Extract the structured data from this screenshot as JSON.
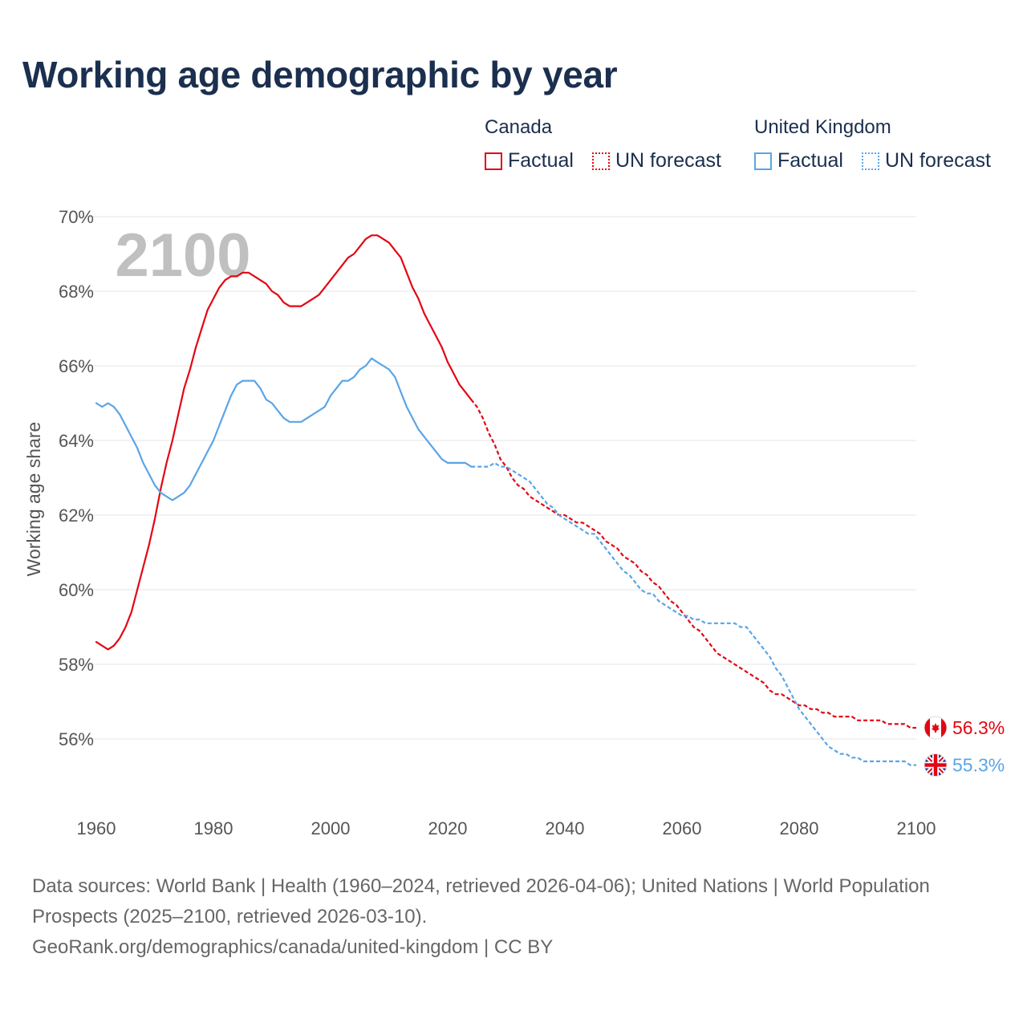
{
  "title": "Working age demographic by year",
  "legend": {
    "groups": [
      {
        "country": "Canada",
        "color": "#e30613",
        "items": [
          {
            "label": "Factual",
            "style": "solid"
          },
          {
            "label": "UN forecast",
            "style": "dotted"
          }
        ]
      },
      {
        "country": "United Kingdom",
        "color": "#5aa5e6",
        "items": [
          {
            "label": "Factual",
            "style": "solid"
          },
          {
            "label": "UN forecast",
            "style": "dotted"
          }
        ]
      }
    ]
  },
  "year_display": "2100",
  "footer": {
    "line1": "Data sources: World Bank | Health (1960–2024, retrieved 2026-04-06); United Nations | World Population Prospects (2025–2100, retrieved 2026-03-10).",
    "line2": "GeoRank.org/demographics/canada/united-kingdom | CC BY"
  },
  "chart_data": {
    "type": "line",
    "title": "Working age demographic by year",
    "xlabel": "",
    "ylabel": "Working age share",
    "xlim": [
      1960,
      2100
    ],
    "ylim": [
      54,
      70
    ],
    "x_ticks": [
      1960,
      1980,
      2000,
      2020,
      2040,
      2060,
      2080,
      2100
    ],
    "y_ticks": [
      56,
      58,
      60,
      62,
      64,
      66,
      68,
      70
    ],
    "y_tick_labels": [
      "56%",
      "58%",
      "60%",
      "62%",
      "64%",
      "66%",
      "68%",
      "70%"
    ],
    "grid": true,
    "factual_end_year": 2024,
    "series": [
      {
        "name": "Canada",
        "color": "#e30613",
        "flag": "canada-flag",
        "end_label": "56.3%",
        "points": [
          [
            1960,
            58.6
          ],
          [
            1961,
            58.5
          ],
          [
            1962,
            58.4
          ],
          [
            1963,
            58.5
          ],
          [
            1964,
            58.7
          ],
          [
            1965,
            59.0
          ],
          [
            1966,
            59.4
          ],
          [
            1967,
            60.0
          ],
          [
            1968,
            60.6
          ],
          [
            1969,
            61.2
          ],
          [
            1970,
            61.9
          ],
          [
            1971,
            62.7
          ],
          [
            1972,
            63.4
          ],
          [
            1973,
            64.0
          ],
          [
            1974,
            64.7
          ],
          [
            1975,
            65.4
          ],
          [
            1976,
            65.9
          ],
          [
            1977,
            66.5
          ],
          [
            1978,
            67.0
          ],
          [
            1979,
            67.5
          ],
          [
            1980,
            67.8
          ],
          [
            1981,
            68.1
          ],
          [
            1982,
            68.3
          ],
          [
            1983,
            68.4
          ],
          [
            1984,
            68.4
          ],
          [
            1985,
            68.5
          ],
          [
            1986,
            68.5
          ],
          [
            1987,
            68.4
          ],
          [
            1988,
            68.3
          ],
          [
            1989,
            68.2
          ],
          [
            1990,
            68.0
          ],
          [
            1991,
            67.9
          ],
          [
            1992,
            67.7
          ],
          [
            1993,
            67.6
          ],
          [
            1994,
            67.6
          ],
          [
            1995,
            67.6
          ],
          [
            1996,
            67.7
          ],
          [
            1997,
            67.8
          ],
          [
            1998,
            67.9
          ],
          [
            1999,
            68.1
          ],
          [
            2000,
            68.3
          ],
          [
            2001,
            68.5
          ],
          [
            2002,
            68.7
          ],
          [
            2003,
            68.9
          ],
          [
            2004,
            69.0
          ],
          [
            2005,
            69.2
          ],
          [
            2006,
            69.4
          ],
          [
            2007,
            69.5
          ],
          [
            2008,
            69.5
          ],
          [
            2009,
            69.4
          ],
          [
            2010,
            69.3
          ],
          [
            2011,
            69.1
          ],
          [
            2012,
            68.9
          ],
          [
            2013,
            68.5
          ],
          [
            2014,
            68.1
          ],
          [
            2015,
            67.8
          ],
          [
            2016,
            67.4
          ],
          [
            2017,
            67.1
          ],
          [
            2018,
            66.8
          ],
          [
            2019,
            66.5
          ],
          [
            2020,
            66.1
          ],
          [
            2021,
            65.8
          ],
          [
            2022,
            65.5
          ],
          [
            2023,
            65.3
          ],
          [
            2024,
            65.1
          ],
          [
            2025,
            64.9
          ],
          [
            2026,
            64.6
          ],
          [
            2027,
            64.2
          ],
          [
            2028,
            63.9
          ],
          [
            2029,
            63.5
          ],
          [
            2030,
            63.3
          ],
          [
            2031,
            63.0
          ],
          [
            2032,
            62.8
          ],
          [
            2033,
            62.7
          ],
          [
            2034,
            62.5
          ],
          [
            2035,
            62.4
          ],
          [
            2036,
            62.3
          ],
          [
            2037,
            62.2
          ],
          [
            2038,
            62.1
          ],
          [
            2039,
            62.0
          ],
          [
            2040,
            62.0
          ],
          [
            2041,
            61.9
          ],
          [
            2042,
            61.8
          ],
          [
            2043,
            61.8
          ],
          [
            2044,
            61.7
          ],
          [
            2045,
            61.6
          ],
          [
            2046,
            61.5
          ],
          [
            2047,
            61.3
          ],
          [
            2048,
            61.2
          ],
          [
            2049,
            61.1
          ],
          [
            2050,
            60.9
          ],
          [
            2051,
            60.8
          ],
          [
            2052,
            60.7
          ],
          [
            2053,
            60.5
          ],
          [
            2054,
            60.4
          ],
          [
            2055,
            60.2
          ],
          [
            2056,
            60.1
          ],
          [
            2057,
            59.9
          ],
          [
            2058,
            59.7
          ],
          [
            2059,
            59.6
          ],
          [
            2060,
            59.4
          ],
          [
            2061,
            59.2
          ],
          [
            2062,
            59.0
          ],
          [
            2063,
            58.9
          ],
          [
            2064,
            58.7
          ],
          [
            2065,
            58.5
          ],
          [
            2066,
            58.3
          ],
          [
            2067,
            58.2
          ],
          [
            2068,
            58.1
          ],
          [
            2069,
            58.0
          ],
          [
            2070,
            57.9
          ],
          [
            2071,
            57.8
          ],
          [
            2072,
            57.7
          ],
          [
            2073,
            57.6
          ],
          [
            2074,
            57.5
          ],
          [
            2075,
            57.3
          ],
          [
            2076,
            57.2
          ],
          [
            2077,
            57.2
          ],
          [
            2078,
            57.1
          ],
          [
            2079,
            57.0
          ],
          [
            2080,
            56.9
          ],
          [
            2081,
            56.9
          ],
          [
            2082,
            56.8
          ],
          [
            2083,
            56.8
          ],
          [
            2084,
            56.7
          ],
          [
            2085,
            56.7
          ],
          [
            2086,
            56.6
          ],
          [
            2087,
            56.6
          ],
          [
            2088,
            56.6
          ],
          [
            2089,
            56.6
          ],
          [
            2090,
            56.5
          ],
          [
            2091,
            56.5
          ],
          [
            2092,
            56.5
          ],
          [
            2093,
            56.5
          ],
          [
            2094,
            56.5
          ],
          [
            2095,
            56.4
          ],
          [
            2096,
            56.4
          ],
          [
            2097,
            56.4
          ],
          [
            2098,
            56.4
          ],
          [
            2099,
            56.3
          ],
          [
            2100,
            56.3
          ]
        ]
      },
      {
        "name": "United Kingdom",
        "color": "#5aa5e6",
        "flag": "uk-flag",
        "end_label": "55.3%",
        "points": [
          [
            1960,
            65.0
          ],
          [
            1961,
            64.9
          ],
          [
            1962,
            65.0
          ],
          [
            1963,
            64.9
          ],
          [
            1964,
            64.7
          ],
          [
            1965,
            64.4
          ],
          [
            1966,
            64.1
          ],
          [
            1967,
            63.8
          ],
          [
            1968,
            63.4
          ],
          [
            1969,
            63.1
          ],
          [
            1970,
            62.8
          ],
          [
            1971,
            62.6
          ],
          [
            1972,
            62.5
          ],
          [
            1973,
            62.4
          ],
          [
            1974,
            62.5
          ],
          [
            1975,
            62.6
          ],
          [
            1976,
            62.8
          ],
          [
            1977,
            63.1
          ],
          [
            1978,
            63.4
          ],
          [
            1979,
            63.7
          ],
          [
            1980,
            64.0
          ],
          [
            1981,
            64.4
          ],
          [
            1982,
            64.8
          ],
          [
            1983,
            65.2
          ],
          [
            1984,
            65.5
          ],
          [
            1985,
            65.6
          ],
          [
            1986,
            65.6
          ],
          [
            1987,
            65.6
          ],
          [
            1988,
            65.4
          ],
          [
            1989,
            65.1
          ],
          [
            1990,
            65.0
          ],
          [
            1991,
            64.8
          ],
          [
            1992,
            64.6
          ],
          [
            1993,
            64.5
          ],
          [
            1994,
            64.5
          ],
          [
            1995,
            64.5
          ],
          [
            1996,
            64.6
          ],
          [
            1997,
            64.7
          ],
          [
            1998,
            64.8
          ],
          [
            1999,
            64.9
          ],
          [
            2000,
            65.2
          ],
          [
            2001,
            65.4
          ],
          [
            2002,
            65.6
          ],
          [
            2003,
            65.6
          ],
          [
            2004,
            65.7
          ],
          [
            2005,
            65.9
          ],
          [
            2006,
            66.0
          ],
          [
            2007,
            66.2
          ],
          [
            2008,
            66.1
          ],
          [
            2009,
            66.0
          ],
          [
            2010,
            65.9
          ],
          [
            2011,
            65.7
          ],
          [
            2012,
            65.3
          ],
          [
            2013,
            64.9
          ],
          [
            2014,
            64.6
          ],
          [
            2015,
            64.3
          ],
          [
            2016,
            64.1
          ],
          [
            2017,
            63.9
          ],
          [
            2018,
            63.7
          ],
          [
            2019,
            63.5
          ],
          [
            2020,
            63.4
          ],
          [
            2021,
            63.4
          ],
          [
            2022,
            63.4
          ],
          [
            2023,
            63.4
          ],
          [
            2024,
            63.3
          ],
          [
            2025,
            63.3
          ],
          [
            2026,
            63.3
          ],
          [
            2027,
            63.3
          ],
          [
            2028,
            63.4
          ],
          [
            2029,
            63.3
          ],
          [
            2030,
            63.3
          ],
          [
            2031,
            63.2
          ],
          [
            2032,
            63.1
          ],
          [
            2033,
            63.0
          ],
          [
            2034,
            62.9
          ],
          [
            2035,
            62.7
          ],
          [
            2036,
            62.5
          ],
          [
            2037,
            62.3
          ],
          [
            2038,
            62.2
          ],
          [
            2039,
            62.0
          ],
          [
            2040,
            61.9
          ],
          [
            2041,
            61.8
          ],
          [
            2042,
            61.7
          ],
          [
            2043,
            61.6
          ],
          [
            2044,
            61.5
          ],
          [
            2045,
            61.5
          ],
          [
            2046,
            61.3
          ],
          [
            2047,
            61.1
          ],
          [
            2048,
            60.9
          ],
          [
            2049,
            60.7
          ],
          [
            2050,
            60.5
          ],
          [
            2051,
            60.4
          ],
          [
            2052,
            60.2
          ],
          [
            2053,
            60.0
          ],
          [
            2054,
            59.9
          ],
          [
            2055,
            59.9
          ],
          [
            2056,
            59.7
          ],
          [
            2057,
            59.6
          ],
          [
            2058,
            59.5
          ],
          [
            2059,
            59.4
          ],
          [
            2060,
            59.3
          ],
          [
            2061,
            59.3
          ],
          [
            2062,
            59.2
          ],
          [
            2063,
            59.2
          ],
          [
            2064,
            59.1
          ],
          [
            2065,
            59.1
          ],
          [
            2066,
            59.1
          ],
          [
            2067,
            59.1
          ],
          [
            2068,
            59.1
          ],
          [
            2069,
            59.1
          ],
          [
            2070,
            59.0
          ],
          [
            2071,
            59.0
          ],
          [
            2072,
            58.8
          ],
          [
            2073,
            58.6
          ],
          [
            2074,
            58.4
          ],
          [
            2075,
            58.2
          ],
          [
            2076,
            57.9
          ],
          [
            2077,
            57.7
          ],
          [
            2078,
            57.4
          ],
          [
            2079,
            57.1
          ],
          [
            2080,
            56.8
          ],
          [
            2081,
            56.6
          ],
          [
            2082,
            56.4
          ],
          [
            2083,
            56.2
          ],
          [
            2084,
            56.0
          ],
          [
            2085,
            55.8
          ],
          [
            2086,
            55.7
          ],
          [
            2087,
            55.6
          ],
          [
            2088,
            55.6
          ],
          [
            2089,
            55.5
          ],
          [
            2090,
            55.5
          ],
          [
            2091,
            55.4
          ],
          [
            2092,
            55.4
          ],
          [
            2093,
            55.4
          ],
          [
            2094,
            55.4
          ],
          [
            2095,
            55.4
          ],
          [
            2096,
            55.4
          ],
          [
            2097,
            55.4
          ],
          [
            2098,
            55.4
          ],
          [
            2099,
            55.3
          ],
          [
            2100,
            55.3
          ]
        ]
      }
    ]
  }
}
